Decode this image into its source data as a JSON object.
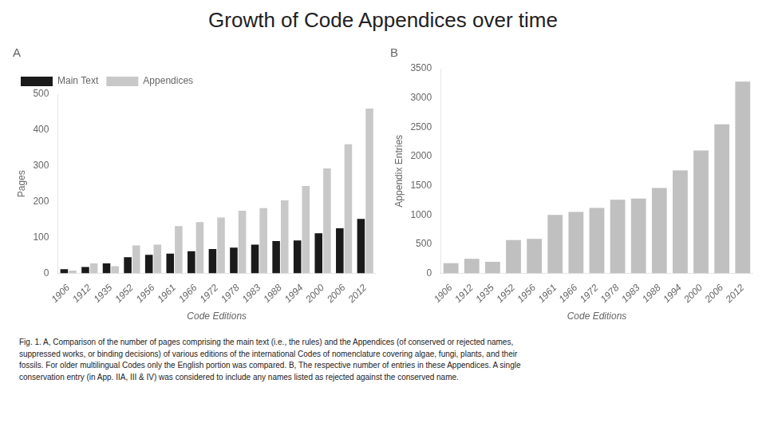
{
  "title": "Growth of Code Appendices over time",
  "caption": "Fig. 1. A, Comparison of the number of pages comprising the main text (i.e., the rules) and the Appendices (of conserved or rejected names,\nsuppressed works, or binding decisions) of various editions of the international Codes of nomenclature covering algae, fungi, plants, and their\nfossils. For older multilingual Codes only the English portion was compared. B, The respective number of entries in these Appendices. A single\nconservation entry (in App. IIA, III & IV) was considered to include any names listed as rejected against the conserved name.",
  "chart_data": [
    {
      "type": "bar",
      "annotation": "A",
      "categories": [
        "1906",
        "1912",
        "1935",
        "1952",
        "1956",
        "1961",
        "1966",
        "1972",
        "1978",
        "1983",
        "1988",
        "1994",
        "2000",
        "2006",
        "2012"
      ],
      "series": [
        {
          "name": "Main Text",
          "color": "#1a1a1a",
          "values": [
            12,
            18,
            28,
            45,
            52,
            55,
            62,
            68,
            72,
            80,
            90,
            92,
            112,
            126,
            152
          ]
        },
        {
          "name": "Appendices",
          "color": "#c8c8c8",
          "values": [
            8,
            28,
            20,
            78,
            80,
            132,
            143,
            156,
            175,
            182,
            204,
            244,
            293,
            360,
            460
          ]
        }
      ],
      "x_label": "Code Editions",
      "y_label": "Pages",
      "ylim": [
        0,
        500
      ],
      "yticks": [
        0,
        100,
        200,
        300,
        400,
        500
      ],
      "grid": false,
      "legend": "upper left"
    },
    {
      "type": "bar",
      "annotation": "B",
      "categories": [
        "1906",
        "1912",
        "1935",
        "1952",
        "1956",
        "1961",
        "1966",
        "1972",
        "1978",
        "1983",
        "1988",
        "1994",
        "2000",
        "2006",
        "2012"
      ],
      "values": [
        175,
        250,
        200,
        570,
        590,
        1000,
        1050,
        1120,
        1260,
        1280,
        1460,
        1760,
        2100,
        2550,
        3280
      ],
      "color": "#c0c0c0",
      "x_label": "Code Editions",
      "y_label": "Appendix Entries",
      "ylim": [
        0,
        3500
      ],
      "yticks": [
        0,
        500,
        1000,
        1500,
        2000,
        2500,
        3000,
        3500
      ],
      "grid": false
    }
  ]
}
